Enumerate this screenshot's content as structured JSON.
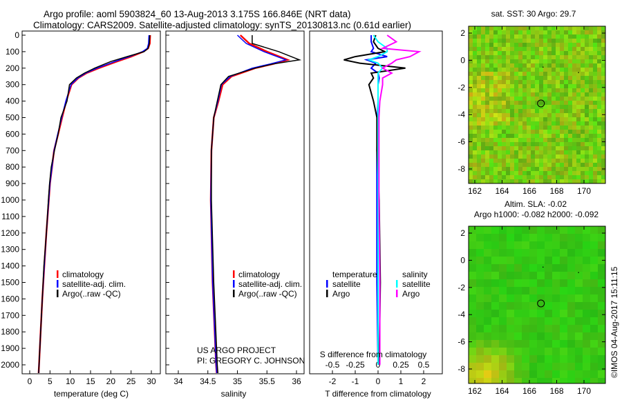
{
  "title": {
    "line1": "Argo profile: aoml 5903824_60 13-Aug-2013 3.175S 166.846E (NRT data)",
    "line2": "Climatology: CARS2009. Satellite-adjusted climatology: synTS_20130813.nc (0.61d earlier)"
  },
  "colors": {
    "climatology": "#ff0000",
    "satellite": "#0000ff",
    "argo": "#000000",
    "sal_satellite": "#00ffff",
    "sal_argo": "#ff00ff"
  },
  "chart_data": [
    {
      "type": "line",
      "name": "temperature",
      "xlabel": "temperature (deg C)",
      "xlim": [
        -2,
        32
      ],
      "ylim": [
        2060,
        0
      ],
      "xticks": [
        "0",
        "5",
        "10",
        "15",
        "20",
        "25",
        "30"
      ],
      "yticks": [
        "0",
        "100",
        "200",
        "300",
        "400",
        "500",
        "600",
        "700",
        "800",
        "900",
        "1000",
        "1100",
        "1200",
        "1300",
        "1400",
        "1500",
        "1600",
        "1700",
        "1800",
        "1900",
        "2000"
      ],
      "legend": [
        "climatology",
        "satellite-adj. clim.",
        "Argo(..raw -QC)"
      ],
      "depth": [
        0,
        50,
        80,
        100,
        130,
        160,
        200,
        230,
        260,
        300,
        400,
        500,
        600,
        700,
        800,
        900,
        1000,
        1200,
        1400,
        1600,
        1800,
        2000,
        2050
      ],
      "series": [
        {
          "name": "climatology",
          "values": [
            29.7,
            29.6,
            29.2,
            28,
            25,
            21.5,
            17,
            14,
            12,
            10.3,
            9,
            8,
            7,
            6,
            5.5,
            5,
            4.7,
            4.1,
            3.6,
            3.1,
            2.7,
            2.3,
            2.2
          ]
        },
        {
          "name": "satellite-adj. clim.",
          "values": [
            29.4,
            29.3,
            29,
            27.8,
            24.6,
            21,
            16.6,
            13.8,
            11.9,
            10.2,
            8.9,
            7.9,
            6.9,
            6,
            5.5,
            5,
            4.7,
            4.1,
            3.6,
            3.1,
            2.7,
            2.3,
            2.2
          ]
        },
        {
          "name": "Argo",
          "values": [
            29.6,
            29.5,
            29.2,
            28.2,
            24,
            20,
            16,
            13.5,
            11.5,
            9.8,
            9.2,
            7.7,
            7,
            6.1,
            5.3,
            4.9,
            4.6,
            4.1,
            3.5,
            3.1,
            2.7,
            2.3,
            2.2
          ]
        }
      ]
    },
    {
      "type": "line",
      "name": "salinity",
      "xlabel": "salinity",
      "xlim": [
        33.8,
        36.1
      ],
      "ylim": [
        2060,
        0
      ],
      "xticks": [
        "34",
        "34.5",
        "35",
        "35.5",
        "36"
      ],
      "legend": [
        "climatology",
        "satellite-adj. clim.",
        "Argo(..raw -QC)"
      ],
      "annotation": [
        "US ARGO PROJECT",
        "PI: GREGORY C. JOHNSON"
      ],
      "depth": [
        0,
        50,
        100,
        150,
        175,
        200,
        250,
        300,
        400,
        500,
        700,
        1000,
        1500,
        2000,
        2050
      ],
      "series": [
        {
          "name": "climatology",
          "values": [
            35.05,
            35.2,
            35.5,
            35.85,
            35.6,
            35.3,
            34.9,
            34.75,
            34.68,
            34.6,
            34.56,
            34.55,
            34.58,
            34.64,
            34.65
          ]
        },
        {
          "name": "satellite-adj. clim.",
          "values": [
            35.0,
            35.15,
            35.45,
            35.82,
            35.55,
            35.25,
            34.88,
            34.73,
            34.67,
            34.6,
            34.56,
            34.55,
            34.58,
            34.64,
            34.65
          ]
        },
        {
          "name": "Argo",
          "values": [
            35.25,
            35.25,
            35.7,
            36.05,
            35.6,
            35.3,
            34.85,
            34.72,
            34.66,
            34.6,
            34.56,
            34.56,
            34.6,
            34.66,
            34.67
          ]
        }
      ]
    },
    {
      "type": "line",
      "name": "difference",
      "xlabel": "T difference from climatology",
      "x2label": "S difference from climatology",
      "xlim": [
        -3,
        3
      ],
      "ylim": [
        2060,
        0
      ],
      "xticks": [
        "-2",
        "-1",
        "0",
        "1",
        "2"
      ],
      "x2ticks": [
        "-0.5",
        "-0.25",
        "0",
        "0.25",
        "0.5"
      ],
      "legend": {
        "temperature": [
          "temperature",
          "satellite",
          "Argo"
        ],
        "salinity": [
          "salinity",
          "satellite",
          "Argo"
        ]
      },
      "depth": [
        0,
        40,
        80,
        100,
        130,
        150,
        170,
        200,
        230,
        260,
        300,
        400,
        500,
        700,
        1000,
        1500,
        2000
      ],
      "series": [
        {
          "name": "T satellite",
          "values": [
            -0.3,
            -0.3,
            -0.2,
            -0.3,
            0.4,
            -0.5,
            -0.1,
            -0.3,
            0,
            0.05,
            0,
            0,
            -0.03,
            -0.05,
            -0.05,
            -0.05,
            0
          ]
        },
        {
          "name": "T Argo",
          "values": [
            -0.1,
            -0.2,
            0,
            0.3,
            -1.0,
            -1.5,
            -0.8,
            1.2,
            -0.3,
            -0.2,
            -0.4,
            -0.2,
            -0.05,
            -0.05,
            0.05,
            0.1,
            0.05
          ]
        },
        {
          "name": "S satellite",
          "values": [
            -0.05,
            0,
            0.1,
            0.1,
            0,
            -0.1,
            0,
            0.05,
            0,
            0,
            0,
            0,
            0,
            0,
            0,
            0,
            0
          ]
        },
        {
          "name": "S Argo",
          "values": [
            0.1,
            0.2,
            0.05,
            0.45,
            0.35,
            0.2,
            0.15,
            0.05,
            0.15,
            0.05,
            0.05,
            0.02,
            0.01,
            0.01,
            0.01,
            0.02,
            0.02
          ]
        }
      ]
    },
    {
      "type": "heatmap",
      "name": "sst-map",
      "title": "sat. SST: 30 Argo: 29.7",
      "xticks": [
        "162",
        "164",
        "166",
        "168",
        "170"
      ],
      "yticks": [
        "2",
        "0",
        "-2",
        "-4",
        "-6",
        "-8"
      ],
      "argo_position": [
        166.846,
        -3.175
      ]
    },
    {
      "type": "heatmap",
      "name": "sla-map",
      "title": [
        "Altim. SLA: -0.02",
        "Argo h1000: -0.082 h2000: -0.092"
      ],
      "xticks": [
        "162",
        "164",
        "166",
        "168",
        "170"
      ],
      "yticks": [
        "2",
        "0",
        "-2",
        "-4",
        "-6",
        "-8"
      ],
      "argo_position": [
        166.846,
        -3.175
      ]
    }
  ],
  "credit": "©IMOS 04-Aug-2017 15:11:15"
}
